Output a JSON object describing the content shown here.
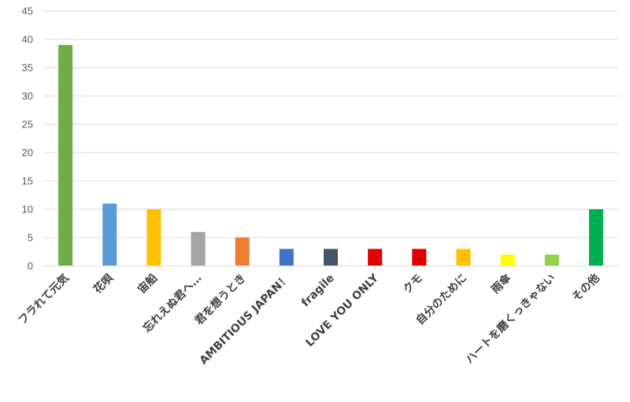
{
  "chart_data": {
    "type": "bar",
    "title": "",
    "xlabel": "",
    "ylabel": "",
    "ylim": [
      0,
      45
    ],
    "yticks": [
      0,
      5,
      10,
      15,
      20,
      25,
      30,
      35,
      40,
      45
    ],
    "grid": true,
    "legend": "none",
    "categories": [
      "フラれて元気",
      "花唄",
      "宙船",
      "忘れえぬ君へ…",
      "君を想うとき",
      "AMBITIOUS JAPAN！",
      "fragile",
      "LOVE YOU ONLY",
      "クモ",
      "自分のために",
      "雨傘",
      "ハートを磨くっきゃない",
      "その他"
    ],
    "values": [
      39,
      11,
      10,
      6,
      5,
      3,
      3,
      3,
      3,
      3,
      2,
      2,
      10
    ],
    "colors": [
      "#70ad47",
      "#5b9bd5",
      "#ffc000",
      "#a5a5a5",
      "#ed7d31",
      "#4472c4",
      "#44546a",
      "#e00000",
      "#e00000",
      "#ffc000",
      "#ffff00",
      "#92d050",
      "#00b050"
    ]
  }
}
